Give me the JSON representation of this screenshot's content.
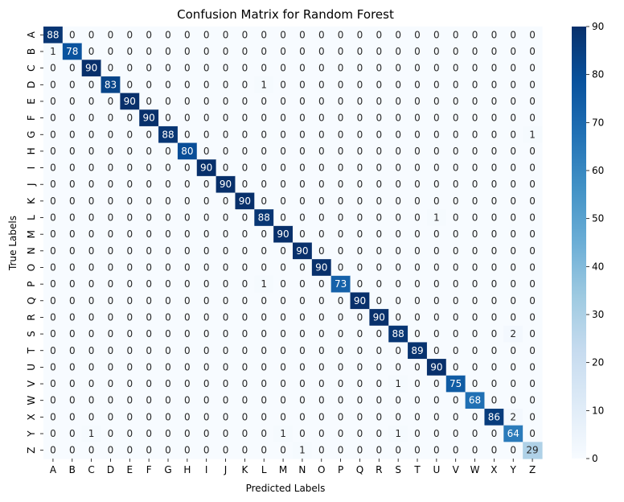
{
  "chart_data": {
    "type": "heatmap",
    "title": "Confusion Matrix for Random Forest",
    "xlabel": "Predicted Labels",
    "ylabel": "True Labels",
    "x_categories": [
      "A",
      "B",
      "C",
      "D",
      "E",
      "F",
      "G",
      "H",
      "I",
      "J",
      "K",
      "L",
      "M",
      "N",
      "O",
      "P",
      "Q",
      "R",
      "S",
      "T",
      "U",
      "V",
      "W",
      "X",
      "Y",
      "Z"
    ],
    "y_categories": [
      "A",
      "B",
      "C",
      "D",
      "E",
      "F",
      "G",
      "H",
      "I",
      "J",
      "K",
      "L",
      "M",
      "N",
      "O",
      "P",
      "Q",
      "R",
      "S",
      "T",
      "U",
      "V",
      "W",
      "X",
      "Y",
      "Z"
    ],
    "matrix": [
      [
        88,
        0,
        0,
        0,
        0,
        0,
        0,
        0,
        0,
        0,
        0,
        0,
        0,
        0,
        0,
        0,
        0,
        0,
        0,
        0,
        0,
        0,
        0,
        0,
        0,
        0
      ],
      [
        1,
        78,
        0,
        0,
        0,
        0,
        0,
        0,
        0,
        0,
        0,
        0,
        0,
        0,
        0,
        0,
        0,
        0,
        0,
        0,
        0,
        0,
        0,
        0,
        0,
        0
      ],
      [
        0,
        0,
        90,
        0,
        0,
        0,
        0,
        0,
        0,
        0,
        0,
        0,
        0,
        0,
        0,
        0,
        0,
        0,
        0,
        0,
        0,
        0,
        0,
        0,
        0,
        0
      ],
      [
        0,
        0,
        0,
        83,
        0,
        0,
        0,
        0,
        0,
        0,
        0,
        1,
        0,
        0,
        0,
        0,
        0,
        0,
        0,
        0,
        0,
        0,
        0,
        0,
        0,
        0
      ],
      [
        0,
        0,
        0,
        0,
        90,
        0,
        0,
        0,
        0,
        0,
        0,
        0,
        0,
        0,
        0,
        0,
        0,
        0,
        0,
        0,
        0,
        0,
        0,
        0,
        0,
        0
      ],
      [
        0,
        0,
        0,
        0,
        0,
        90,
        0,
        0,
        0,
        0,
        0,
        0,
        0,
        0,
        0,
        0,
        0,
        0,
        0,
        0,
        0,
        0,
        0,
        0,
        0,
        0
      ],
      [
        0,
        0,
        0,
        0,
        0,
        0,
        88,
        0,
        0,
        0,
        0,
        0,
        0,
        0,
        0,
        0,
        0,
        0,
        0,
        0,
        0,
        0,
        0,
        0,
        0,
        1
      ],
      [
        0,
        0,
        0,
        0,
        0,
        0,
        0,
        80,
        0,
        0,
        0,
        0,
        0,
        0,
        0,
        0,
        0,
        0,
        0,
        0,
        0,
        0,
        0,
        0,
        0,
        0
      ],
      [
        0,
        0,
        0,
        0,
        0,
        0,
        0,
        0,
        90,
        0,
        0,
        0,
        0,
        0,
        0,
        0,
        0,
        0,
        0,
        0,
        0,
        0,
        0,
        0,
        0,
        0
      ],
      [
        0,
        0,
        0,
        0,
        0,
        0,
        0,
        0,
        0,
        90,
        0,
        0,
        0,
        0,
        0,
        0,
        0,
        0,
        0,
        0,
        0,
        0,
        0,
        0,
        0,
        0
      ],
      [
        0,
        0,
        0,
        0,
        0,
        0,
        0,
        0,
        0,
        0,
        90,
        0,
        0,
        0,
        0,
        0,
        0,
        0,
        0,
        0,
        0,
        0,
        0,
        0,
        0,
        0
      ],
      [
        0,
        0,
        0,
        0,
        0,
        0,
        0,
        0,
        0,
        0,
        0,
        88,
        0,
        0,
        0,
        0,
        0,
        0,
        0,
        0,
        1,
        0,
        0,
        0,
        0,
        0
      ],
      [
        0,
        0,
        0,
        0,
        0,
        0,
        0,
        0,
        0,
        0,
        0,
        0,
        90,
        0,
        0,
        0,
        0,
        0,
        0,
        0,
        0,
        0,
        0,
        0,
        0,
        0
      ],
      [
        0,
        0,
        0,
        0,
        0,
        0,
        0,
        0,
        0,
        0,
        0,
        0,
        0,
        90,
        0,
        0,
        0,
        0,
        0,
        0,
        0,
        0,
        0,
        0,
        0,
        0
      ],
      [
        0,
        0,
        0,
        0,
        0,
        0,
        0,
        0,
        0,
        0,
        0,
        0,
        0,
        0,
        90,
        0,
        0,
        0,
        0,
        0,
        0,
        0,
        0,
        0,
        0,
        0
      ],
      [
        0,
        0,
        0,
        0,
        0,
        0,
        0,
        0,
        0,
        0,
        0,
        1,
        0,
        0,
        0,
        73,
        0,
        0,
        0,
        0,
        0,
        0,
        0,
        0,
        0,
        0
      ],
      [
        0,
        0,
        0,
        0,
        0,
        0,
        0,
        0,
        0,
        0,
        0,
        0,
        0,
        0,
        0,
        0,
        90,
        0,
        0,
        0,
        0,
        0,
        0,
        0,
        0,
        0
      ],
      [
        0,
        0,
        0,
        0,
        0,
        0,
        0,
        0,
        0,
        0,
        0,
        0,
        0,
        0,
        0,
        0,
        0,
        90,
        0,
        0,
        0,
        0,
        0,
        0,
        0,
        0
      ],
      [
        0,
        0,
        0,
        0,
        0,
        0,
        0,
        0,
        0,
        0,
        0,
        0,
        0,
        0,
        0,
        0,
        0,
        0,
        88,
        0,
        0,
        0,
        0,
        0,
        2,
        0
      ],
      [
        0,
        0,
        0,
        0,
        0,
        0,
        0,
        0,
        0,
        0,
        0,
        0,
        0,
        0,
        0,
        0,
        0,
        0,
        0,
        89,
        0,
        0,
        0,
        0,
        0,
        0
      ],
      [
        0,
        0,
        0,
        0,
        0,
        0,
        0,
        0,
        0,
        0,
        0,
        0,
        0,
        0,
        0,
        0,
        0,
        0,
        0,
        0,
        90,
        0,
        0,
        0,
        0,
        0
      ],
      [
        0,
        0,
        0,
        0,
        0,
        0,
        0,
        0,
        0,
        0,
        0,
        0,
        0,
        0,
        0,
        0,
        0,
        0,
        1,
        0,
        0,
        75,
        0,
        0,
        0,
        0
      ],
      [
        0,
        0,
        0,
        0,
        0,
        0,
        0,
        0,
        0,
        0,
        0,
        0,
        0,
        0,
        0,
        0,
        0,
        0,
        0,
        0,
        0,
        0,
        68,
        0,
        0,
        0
      ],
      [
        0,
        0,
        0,
        0,
        0,
        0,
        0,
        0,
        0,
        0,
        0,
        0,
        0,
        0,
        0,
        0,
        0,
        0,
        0,
        0,
        0,
        0,
        0,
        86,
        2,
        0
      ],
      [
        0,
        0,
        1,
        0,
        0,
        0,
        0,
        0,
        0,
        0,
        0,
        0,
        1,
        0,
        0,
        0,
        0,
        0,
        1,
        0,
        0,
        0,
        0,
        0,
        64,
        0
      ],
      [
        0,
        0,
        0,
        0,
        0,
        0,
        0,
        0,
        0,
        0,
        0,
        0,
        0,
        1,
        0,
        0,
        0,
        0,
        0,
        0,
        0,
        0,
        0,
        0,
        0,
        29
      ]
    ],
    "colormap": "Blues",
    "colorbar": {
      "min": 0,
      "max": 90,
      "ticks": [
        0,
        10,
        20,
        30,
        40,
        50,
        60,
        70,
        80,
        90
      ]
    }
  }
}
